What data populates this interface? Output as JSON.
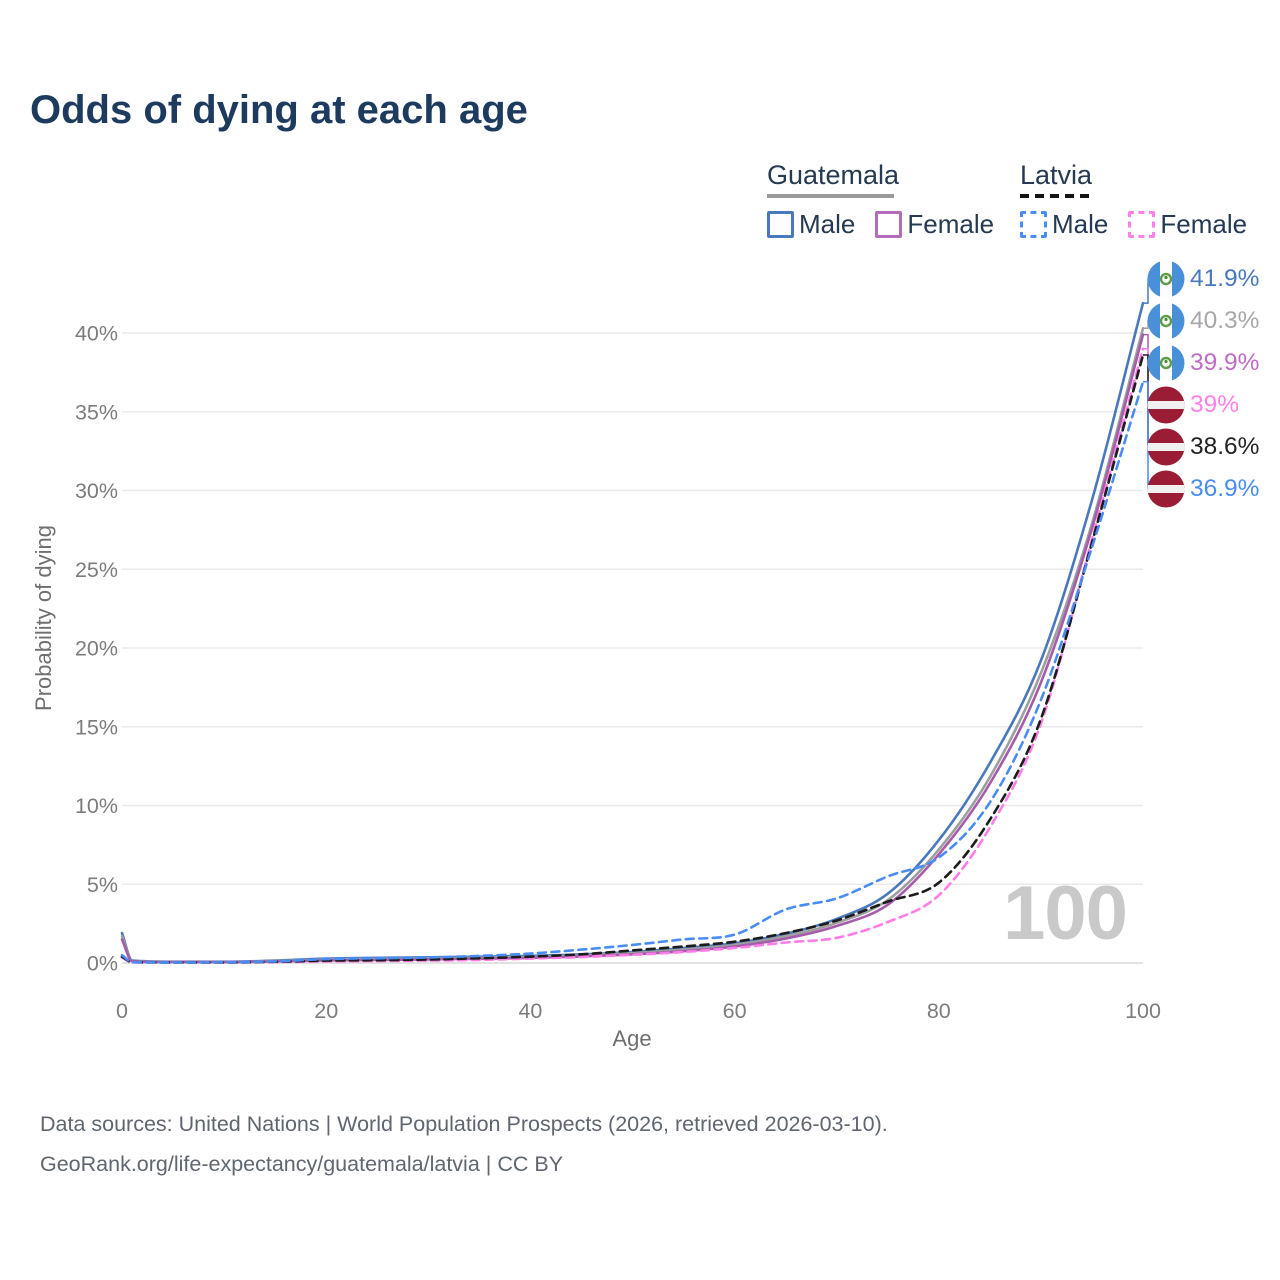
{
  "title": "Odds of dying at each age",
  "legend": {
    "groups": [
      {
        "country": "Guatemala",
        "underline": "solid",
        "items": [
          {
            "label": "Male"
          },
          {
            "label": "Female"
          }
        ]
      },
      {
        "country": "Latvia",
        "underline": "dashed",
        "items": [
          {
            "label": "Male"
          },
          {
            "label": "Female"
          }
        ]
      }
    ]
  },
  "chart_data": {
    "type": "line",
    "title": "Odds of dying at each age",
    "xlabel": "Age",
    "ylabel": "Probability of dying",
    "xlim": [
      0,
      100
    ],
    "ylim_percent": [
      0,
      44
    ],
    "x_ticks": [
      0,
      20,
      40,
      60,
      80,
      100
    ],
    "y_ticks": [
      "0%",
      "5%",
      "10%",
      "15%",
      "20%",
      "25%",
      "30%",
      "35%",
      "40%"
    ],
    "grid": "horizontal",
    "legend_position": "top-right",
    "x": [
      0,
      1,
      5,
      10,
      15,
      20,
      25,
      30,
      35,
      40,
      45,
      50,
      55,
      60,
      65,
      70,
      75,
      80,
      85,
      90,
      95,
      100
    ],
    "series": [
      {
        "name": "Guatemala Male",
        "style": "solid",
        "color": "#4a78be",
        "label_color": "#4a78be",
        "values": [
          1.9,
          0.15,
          0.08,
          0.08,
          0.15,
          0.28,
          0.33,
          0.36,
          0.4,
          0.45,
          0.55,
          0.7,
          0.95,
          1.25,
          1.85,
          2.8,
          4.4,
          7.8,
          12.7,
          19.2,
          29.4,
          41.9
        ],
        "end_label": "41.9%",
        "flag": "guatemala"
      },
      {
        "name": "Guatemala Average",
        "style": "solid",
        "color": "#9e9e9e",
        "label_color": "#a8a8a8",
        "values": [
          1.7,
          0.13,
          0.07,
          0.07,
          0.12,
          0.22,
          0.26,
          0.3,
          0.33,
          0.38,
          0.48,
          0.62,
          0.85,
          1.15,
          1.7,
          2.55,
          4.0,
          7.2,
          11.8,
          18.4,
          27.9,
          40.3
        ],
        "end_label": "40.3%",
        "flag": "guatemala"
      },
      {
        "name": "Guatemala Female",
        "style": "solid",
        "color": "#a55dab",
        "label_color": "#c06cc6",
        "values": [
          1.5,
          0.11,
          0.06,
          0.06,
          0.1,
          0.16,
          0.19,
          0.23,
          0.27,
          0.32,
          0.42,
          0.55,
          0.75,
          1.05,
          1.55,
          2.35,
          3.7,
          6.9,
          11.4,
          17.8,
          27.6,
          39.9
        ],
        "end_label": "39.9%",
        "flag": "guatemala"
      },
      {
        "name": "Latvia Female",
        "style": "dashed",
        "color": "#ff7de8",
        "label_color": "#ff80e8",
        "values": [
          0.35,
          0.04,
          0.03,
          0.03,
          0.06,
          0.1,
          0.12,
          0.15,
          0.2,
          0.28,
          0.38,
          0.52,
          0.7,
          0.95,
          1.3,
          1.6,
          2.6,
          4.3,
          8.6,
          15.2,
          26.9,
          39.0
        ],
        "end_label": "39%",
        "flag": "latvia"
      },
      {
        "name": "Latvia Average",
        "style": "dashed",
        "color": "#1c1c1c",
        "label_color": "#222222",
        "values": [
          0.4,
          0.05,
          0.04,
          0.04,
          0.08,
          0.15,
          0.18,
          0.22,
          0.3,
          0.4,
          0.55,
          0.8,
          1.05,
          1.35,
          1.9,
          2.7,
          3.9,
          5.1,
          9.1,
          15.5,
          26.7,
          38.6
        ],
        "end_label": "38.6%",
        "flag": "latvia"
      },
      {
        "name": "Latvia Male",
        "style": "dashed",
        "color": "#4a8cf5",
        "label_color": "#4a8cf5",
        "values": [
          0.5,
          0.05,
          0.04,
          0.05,
          0.1,
          0.25,
          0.3,
          0.35,
          0.45,
          0.6,
          0.85,
          1.15,
          1.5,
          1.8,
          3.4,
          4.1,
          5.5,
          6.7,
          10.2,
          16.7,
          26.4,
          36.9
        ],
        "end_label": "36.9%",
        "flag": "latvia"
      }
    ],
    "watermark": "100"
  },
  "axis": {
    "xlabel": "Age",
    "ylabel": "Probability of dying"
  },
  "watermark": "100",
  "sources": {
    "line1": "Data sources: United Nations | World Population Prospects (2026, retrieved 2026-03-10).",
    "line2": "GeoRank.org/life-expectancy/guatemala/latvia | CC BY"
  },
  "colors": {
    "title_text": "#1d3b5e",
    "legend_text": "#253a52",
    "tick_text": "#7c7c7c",
    "gridline": "#eaeaea",
    "baseline": "#d8d8d8",
    "guatemala_flag_blue": "#4a90d9",
    "guatemala_emblem_green": "#5f9e49",
    "latvia_flag_red": "#9b1c35"
  }
}
